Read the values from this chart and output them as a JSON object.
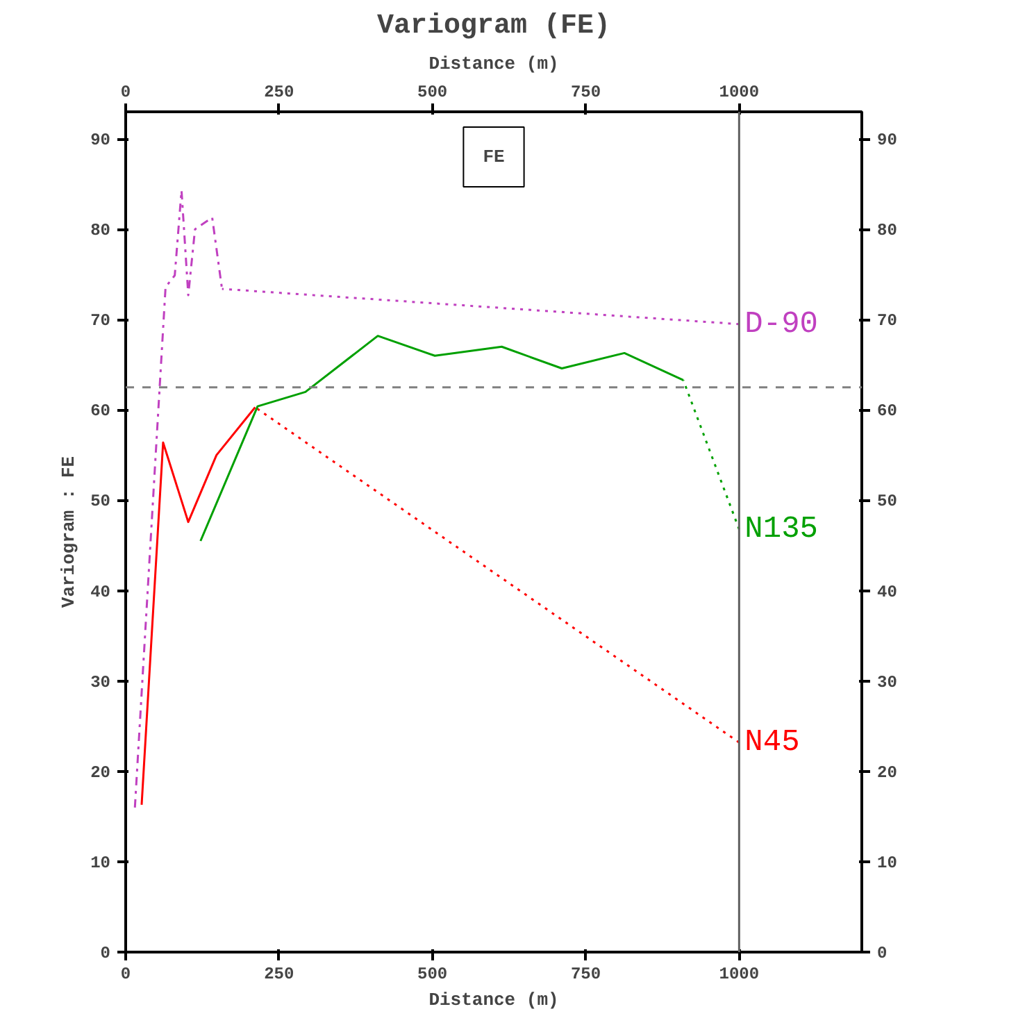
{
  "chart_data": {
    "type": "line",
    "title": "Variogram (FE)",
    "xlabel": "Distance (m)",
    "x2label": "Distance (m)",
    "ylabel": "Variogram : FE",
    "xlim": [
      0,
      1200
    ],
    "xticks": [
      0,
      250,
      500,
      750,
      1000
    ],
    "x2lim": [
      0,
      1200
    ],
    "x2ticks": [
      0,
      250,
      500,
      750,
      1000
    ],
    "ylim": [
      0,
      93
    ],
    "yticks": [
      0,
      10,
      20,
      30,
      40,
      50,
      60,
      70,
      80,
      90
    ],
    "y2lim": [
      0,
      93
    ],
    "y2ticks": [
      0,
      10,
      20,
      30,
      40,
      50,
      60,
      70,
      80,
      90
    ],
    "grid": false,
    "marker": "none",
    "annotations": [
      "FE"
    ],
    "ref_lines": [
      {
        "axis": "y",
        "value": 62.5,
        "color": "#808080",
        "line_style": "dashed"
      },
      {
        "axis": "x",
        "value": 1000,
        "color": "#606060",
        "line_style": "solid"
      }
    ],
    "series": [
      {
        "color": "#ff0000",
        "line_style": "solid",
        "x": [
          26,
          61,
          102,
          148,
          211
        ],
        "values": [
          16.3,
          56.4,
          47.6,
          55,
          60.3
        ]
      },
      {
        "name": "N45",
        "color": "#ff0000",
        "line_style": "dotted",
        "x": [
          211,
          1000
        ],
        "values": [
          60.3,
          23.2
        ]
      },
      {
        "color": "#00a000",
        "line_style": "solid",
        "x": [
          122,
          215,
          293,
          411,
          504,
          613,
          711,
          813,
          909
        ],
        "values": [
          45.5,
          60.4,
          62,
          68.2,
          66,
          67,
          64.6,
          66.3,
          63.3
        ]
      },
      {
        "name": "N135",
        "color": "#00a000",
        "line_style": "dotted",
        "x": [
          909,
          1000
        ],
        "values": [
          63.3,
          46.8
        ]
      },
      {
        "color": "#c040c0",
        "line_style": "dashdot",
        "x": [
          15,
          65,
          80,
          91,
          102,
          113,
          141,
          157
        ],
        "values": [
          16,
          73.6,
          74.9,
          84.3,
          72.7,
          80,
          81.3,
          73.4
        ]
      },
      {
        "name": "D-90",
        "color": "#c040c0",
        "line_style": "dotted",
        "x": [
          157,
          1000
        ],
        "values": [
          73.4,
          69.5
        ]
      }
    ]
  }
}
